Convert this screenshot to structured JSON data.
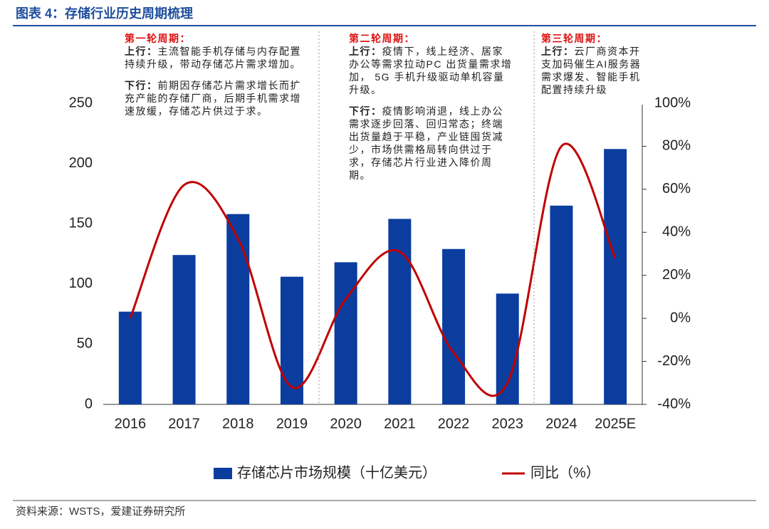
{
  "chart_data": {
    "type": "bar_line",
    "title": "图表 4：存储行业历史周期梳理",
    "categories": [
      "2016",
      "2017",
      "2018",
      "2019",
      "2020",
      "2021",
      "2022",
      "2023",
      "2024",
      "2025E"
    ],
    "series": [
      {
        "name": "存储芯片市场规模（十亿美元）",
        "type": "bar",
        "color": "#0b3d9f",
        "values": [
          77,
          124,
          158,
          106,
          118,
          154,
          129,
          92,
          165,
          212
        ]
      },
      {
        "name": "同比（%）",
        "type": "line",
        "axis": "y2",
        "color": "#c00000",
        "values": [
          0,
          62,
          37,
          -32,
          9,
          31,
          -16,
          -30,
          80,
          28
        ]
      }
    ],
    "ylim": [
      0,
      250
    ],
    "yticks": [
      0,
      50,
      100,
      150,
      200,
      250
    ],
    "y2lim": [
      -40,
      100
    ],
    "y2ticks": [
      {
        "value": -40,
        "label": "-40%"
      },
      {
        "value": -20,
        "label": "-20%"
      },
      {
        "value": 0,
        "label": "0%"
      },
      {
        "value": 20,
        "label": "20%"
      },
      {
        "value": 40,
        "label": "40%"
      },
      {
        "value": 60,
        "label": "60%"
      },
      {
        "value": 80,
        "label": "80%"
      },
      {
        "value": 100,
        "label": "100%"
      }
    ],
    "annotations": [
      {
        "title": "第一轮周期：",
        "up_label": "上行：",
        "up_text": "主流智能手机存储与内存配置持续升级，带动存储芯片需求增加。",
        "down_label": "下行：",
        "down_text": "前期因存储芯片需求增长而扩充产能的存储厂商，后期手机需求增速放缓，存储芯片供过于求。"
      },
      {
        "title": "第二轮周期：",
        "up_label": "上行：",
        "up_text": "疫情下，线上经济、居家办公等需求拉动PC 出货量需求增加， 5G 手机升级驱动单机容量升级。",
        "down_label": "下行：",
        "down_text": "疫情影响消退，线上办公需求逐步回落、回归常态；终端出货量趋于平稳，产业链囤货减少，市场供需格局转向供过于求，存储芯片行业进入降价周期。"
      },
      {
        "title": "第三轮周期：",
        "up_label": "上行：",
        "up_text": "云厂商资本开支加码催生AI服务器需求爆发、智能手机配置持续升级"
      }
    ],
    "source": "资料来源：WSTS，爱建证券研究所"
  }
}
